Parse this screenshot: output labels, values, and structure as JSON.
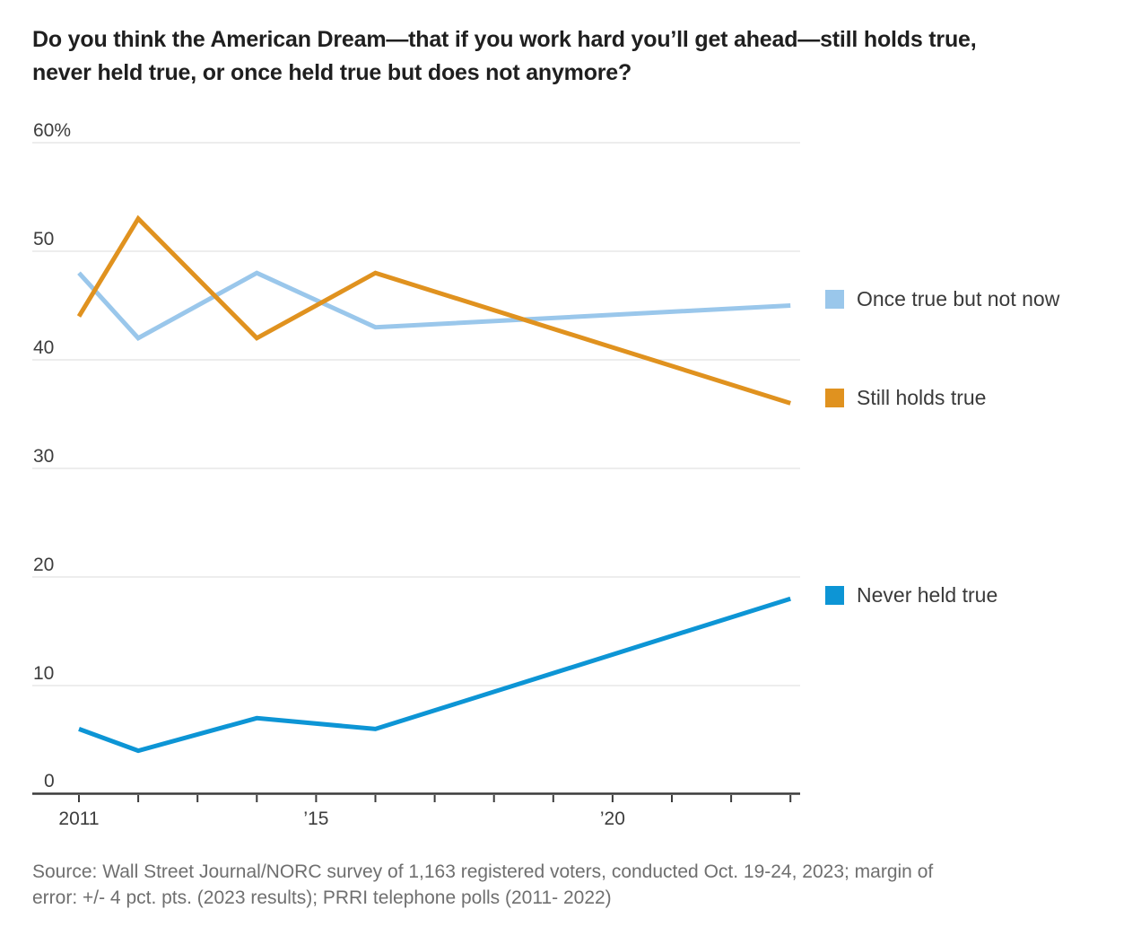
{
  "title": {
    "line1": "Do you think the American Dream—that if you work hard you’ll get ahead—still holds true,",
    "line2": "never held true, or once held true but does not anymore?"
  },
  "chart_data": {
    "type": "line",
    "title": "Do you think the American Dream—that if you work hard you’ll get ahead—still holds true, never held true, or once held true but does not anymore?",
    "x": [
      2011,
      2012,
      2014,
      2016,
      2023
    ],
    "series": [
      {
        "name": "Once true but not now",
        "color": "#9ac7eb",
        "values": [
          48,
          42,
          48,
          43,
          45
        ]
      },
      {
        "name": "Still holds true",
        "color": "#e0921f",
        "values": [
          44,
          53,
          42,
          48,
          36
        ]
      },
      {
        "name": "Never held true",
        "color": "#0d95d5",
        "values": [
          6,
          4,
          7,
          6,
          18
        ]
      }
    ],
    "ylim": [
      0,
      60
    ],
    "yticks": [
      {
        "value": 0,
        "label": "0"
      },
      {
        "value": 10,
        "label": "10"
      },
      {
        "value": 20,
        "label": "20"
      },
      {
        "value": 30,
        "label": "30"
      },
      {
        "value": 40,
        "label": "40"
      },
      {
        "value": 50,
        "label": "50"
      },
      {
        "value": 60,
        "label": "60%"
      }
    ],
    "xtick_years": [
      2011,
      2012,
      2013,
      2014,
      2015,
      2016,
      2017,
      2018,
      2019,
      2020,
      2021,
      2022,
      2023
    ],
    "xtick_labels": [
      {
        "year": 2011,
        "label": "2011"
      },
      {
        "year": 2015,
        "label": "’15"
      },
      {
        "year": 2020,
        "label": "’20"
      }
    ],
    "grid": true,
    "legend_position": "right",
    "colors": {
      "gridline": "#e7e7e7",
      "axis": "#3b3b3b",
      "tick_label": "#3d3d3d"
    }
  },
  "source": {
    "line1": "Source: Wall Street Journal/NORC survey of 1,163 registered voters, conducted Oct. 19-24, 2023; margin of",
    "line2": "error: +/- 4 pct. pts. (2023 results); PRRI telephone polls (2011- 2022)"
  }
}
